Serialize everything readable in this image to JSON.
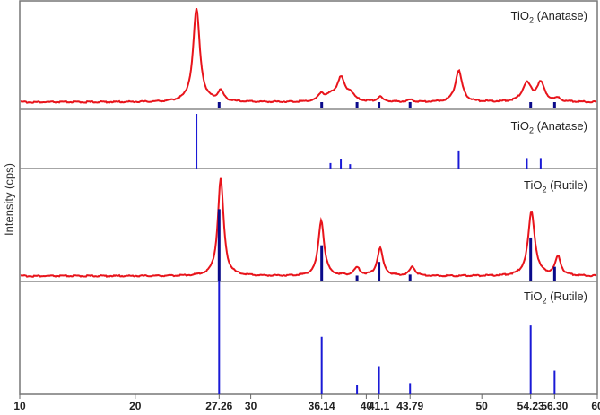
{
  "chart_data": {
    "type": "line",
    "title": "",
    "xlabel": "",
    "ylabel": "Intensity (cps)",
    "xlim": [
      10,
      60
    ],
    "x_ticks": [
      10,
      20,
      27.26,
      30,
      36.14,
      40,
      41.1,
      43.79,
      50,
      54.23,
      56.3,
      60
    ],
    "x_tick_labels": [
      "10",
      "20",
      "27.26",
      "30",
      "36.14",
      "40",
      "41.1",
      "43.79",
      "50",
      "54.23",
      "56.30",
      "60"
    ],
    "grid": false,
    "legend": "none",
    "panels": [
      {
        "name": "measured-anatase",
        "label_formula": "TiO",
        "label_sub": "2",
        "label_rest": " (Anatase)",
        "type": "line",
        "color": "#e8141b",
        "peaks": [
          {
            "x": 25.3,
            "height": 1.0,
            "width": 0.35
          },
          {
            "x": 27.4,
            "height": 0.11,
            "width": 0.3
          },
          {
            "x": 36.1,
            "height": 0.08,
            "width": 0.3
          },
          {
            "x": 37.0,
            "height": 0.06,
            "width": 0.5
          },
          {
            "x": 37.8,
            "height": 0.24,
            "width": 0.4
          },
          {
            "x": 38.6,
            "height": 0.08,
            "width": 0.4
          },
          {
            "x": 41.2,
            "height": 0.05,
            "width": 0.3
          },
          {
            "x": 43.8,
            "height": 0.02,
            "width": 0.3
          },
          {
            "x": 48.0,
            "height": 0.34,
            "width": 0.35
          },
          {
            "x": 53.9,
            "height": 0.2,
            "width": 0.45
          },
          {
            "x": 55.1,
            "height": 0.2,
            "width": 0.4
          },
          {
            "x": 56.6,
            "height": 0.03,
            "width": 0.3
          }
        ],
        "markers": [
          27.26,
          36.14,
          39.2,
          41.1,
          43.79,
          54.23,
          56.3
        ]
      },
      {
        "name": "reference-anatase",
        "label_formula": "TiO",
        "label_sub": "2",
        "label_rest": " (Anatase)",
        "type": "stick",
        "color": "#1a1ad6",
        "x": [
          25.3,
          36.9,
          37.8,
          38.6,
          48.0,
          53.9,
          55.1
        ],
        "values": [
          1.0,
          0.1,
          0.18,
          0.08,
          0.33,
          0.19,
          0.19
        ]
      },
      {
        "name": "measured-rutile",
        "label_formula": "TiO",
        "label_sub": "2",
        "label_rest": " (Rutile)",
        "type": "line",
        "color": "#e8141b",
        "peaks": [
          {
            "x": 27.4,
            "height": 1.0,
            "width": 0.3
          },
          {
            "x": 36.1,
            "height": 0.57,
            "width": 0.3
          },
          {
            "x": 39.2,
            "height": 0.08,
            "width": 0.3
          },
          {
            "x": 41.2,
            "height": 0.28,
            "width": 0.3
          },
          {
            "x": 44.0,
            "height": 0.09,
            "width": 0.3
          },
          {
            "x": 54.3,
            "height": 0.66,
            "width": 0.35
          },
          {
            "x": 56.6,
            "height": 0.19,
            "width": 0.3
          }
        ],
        "markers": [
          {
            "x": 27.26,
            "value": 0.74
          },
          {
            "x": 36.14,
            "value": 0.37
          },
          {
            "x": 39.2,
            "value": 0.06
          },
          {
            "x": 41.1,
            "value": 0.2
          },
          {
            "x": 43.79,
            "value": 0.07
          },
          {
            "x": 54.23,
            "value": 0.45
          },
          {
            "x": 56.3,
            "value": 0.15
          }
        ]
      },
      {
        "name": "reference-rutile",
        "label_formula": "TiO",
        "label_sub": "2",
        "label_rest": " (Rutile)",
        "type": "stick",
        "color": "#1a1ad6",
        "x": [
          27.26,
          36.14,
          39.2,
          41.1,
          43.79,
          54.23,
          56.3
        ],
        "values": [
          1.0,
          0.51,
          0.08,
          0.25,
          0.1,
          0.61,
          0.21
        ]
      }
    ]
  }
}
